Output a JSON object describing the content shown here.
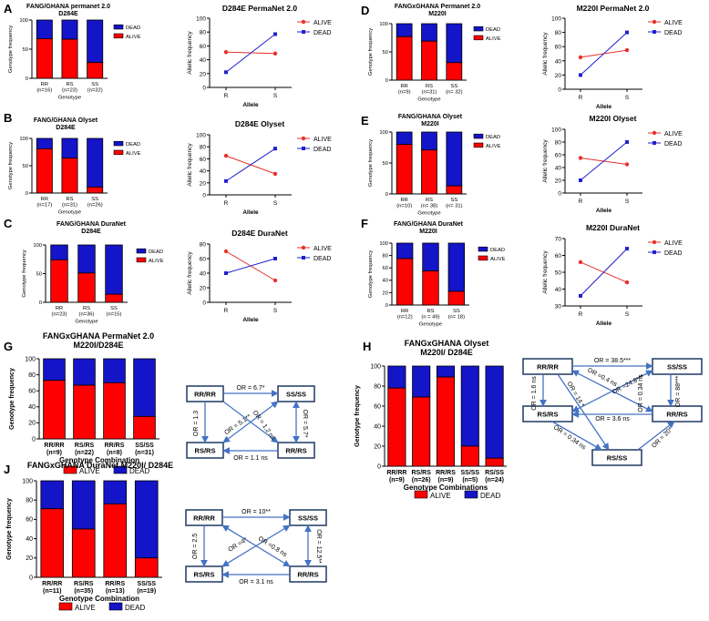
{
  "colors": {
    "alive": "#ff0000",
    "dead": "#1414c8",
    "alive_line": "#e8312c",
    "dead_line": "#2020d0",
    "arrow": "#4472c4",
    "box": "#1f3864"
  },
  "panel_letters": [
    "A",
    "B",
    "C",
    "D",
    "E",
    "F",
    "G",
    "H",
    "J"
  ],
  "chart_data": [
    {
      "id": "A",
      "type": "bar",
      "stacked": true,
      "title_lines": [
        "FANG/GHANA permanet 2.0",
        "D284E"
      ],
      "ylabel": "Genotype frequency",
      "xlabel": "Genotype",
      "ylim": [
        0,
        100
      ],
      "yticks": [
        "0",
        "50",
        "100"
      ],
      "categories": [
        "RR",
        "RS",
        "SS"
      ],
      "ns": [
        "(n=16)",
        "(n=23)",
        "(n=32)"
      ],
      "series": [
        {
          "name": "ALIVE",
          "values": [
            68,
            67,
            27
          ]
        },
        {
          "name": "DEAD",
          "values": [
            32,
            33,
            73
          ]
        }
      ],
      "legend": [
        "DEAD",
        "ALIVE"
      ]
    },
    {
      "id": "A2",
      "type": "line",
      "title": "D284E PermaNet 2.0",
      "ylabel": "Allelic frequency",
      "xlabel": "Allele",
      "x": [
        "R",
        "S"
      ],
      "ylim": [
        0,
        100
      ],
      "yticks": [
        "0",
        "20",
        "40",
        "60",
        "80",
        "100"
      ],
      "series": [
        {
          "name": "ALIVE",
          "values": [
            51,
            49
          ]
        },
        {
          "name": "DEAD",
          "values": [
            22,
            77
          ]
        }
      ]
    },
    {
      "id": "B",
      "type": "bar",
      "stacked": true,
      "title_lines": [
        "FANG/GHANA Olyset",
        "D284E"
      ],
      "ylabel": "Genotype frequency",
      "xlabel": "Genotype",
      "ylim": [
        0,
        100
      ],
      "yticks": [
        "0",
        "50",
        "100"
      ],
      "categories": [
        "RR",
        "RS",
        "SS"
      ],
      "ns": [
        "(n=17)",
        "(n=31)",
        "(n=26)"
      ],
      "series": [
        {
          "name": "ALIVE",
          "values": [
            81,
            64,
            11
          ]
        },
        {
          "name": "DEAD",
          "values": [
            19,
            36,
            89
          ]
        }
      ],
      "legend": [
        "DEAD",
        "ALIVE"
      ]
    },
    {
      "id": "B2",
      "type": "line",
      "title": "D284E Olyset",
      "ylabel": "Allelic frequency",
      "xlabel": "Allele",
      "x": [
        "R",
        "S"
      ],
      "ylim": [
        0,
        100
      ],
      "yticks": [
        "0",
        "20",
        "40",
        "60",
        "80",
        "100"
      ],
      "series": [
        {
          "name": "ALIVE",
          "values": [
            65,
            35
          ]
        },
        {
          "name": "DEAD",
          "values": [
            23,
            77
          ]
        }
      ]
    },
    {
      "id": "C",
      "type": "bar",
      "stacked": true,
      "title_lines": [
        "FANG/GHANA DuraNet",
        "D284E"
      ],
      "ylabel": "Genotype frequency",
      "xlabel": "Genotype",
      "ylim": [
        0,
        100
      ],
      "yticks": [
        "0",
        "50",
        "100"
      ],
      "categories": [
        "RR",
        "RS",
        "SS"
      ],
      "ns": [
        "(n=23)",
        "(n=36)",
        "(n=15)"
      ],
      "series": [
        {
          "name": "ALIVE",
          "values": [
            74,
            51,
            14
          ]
        },
        {
          "name": "DEAD",
          "values": [
            26,
            49,
            86
          ]
        }
      ],
      "legend": [
        "DEAD",
        "ALIVE"
      ]
    },
    {
      "id": "C2",
      "type": "line",
      "title": "D284E DuraNet",
      "ylabel": "Allelic frequency",
      "xlabel": "Allele",
      "x": [
        "R",
        "S"
      ],
      "ylim": [
        0,
        80
      ],
      "yticks": [
        "0",
        "20",
        "40",
        "60",
        "80"
      ],
      "series": [
        {
          "name": "ALIVE",
          "values": [
            70,
            30
          ]
        },
        {
          "name": "DEAD",
          "values": [
            40,
            60
          ]
        }
      ]
    },
    {
      "id": "D",
      "type": "bar",
      "stacked": true,
      "title_lines": [
        "FANGxGHANA Permanet 2.0",
        "M220I"
      ],
      "ylabel": "Genotype frequency",
      "xlabel": "Genotype",
      "ylim": [
        0,
        100
      ],
      "yticks": [
        "0",
        "50",
        "100"
      ],
      "categories": [
        "RR",
        "RS",
        "SS"
      ],
      "ns": [
        "(n=9)",
        "(n=31)",
        "(n= 32)"
      ],
      "series": [
        {
          "name": "ALIVE",
          "values": [
            77,
            69,
            31
          ]
        },
        {
          "name": "DEAD",
          "values": [
            23,
            31,
            69
          ]
        }
      ],
      "legend": [
        "DEAD",
        "ALIVE"
      ]
    },
    {
      "id": "D2",
      "type": "line",
      "title": "M220I PermaNet 2.0",
      "ylabel": "Allelic frequency",
      "xlabel": "Allele",
      "x": [
        "R",
        "S"
      ],
      "ylim": [
        0,
        100
      ],
      "yticks": [
        "0",
        "20",
        "40",
        "60",
        "80",
        "100"
      ],
      "series": [
        {
          "name": "ALIVE",
          "values": [
            45,
            55
          ]
        },
        {
          "name": "DEAD",
          "values": [
            20,
            80
          ]
        }
      ]
    },
    {
      "id": "E",
      "type": "bar",
      "stacked": true,
      "title_lines": [
        "FANG/GHANA Olyset",
        "M220I"
      ],
      "ylabel": "Genotype frequency",
      "xlabel": "Genotype",
      "ylim": [
        0,
        100
      ],
      "yticks": [
        "0",
        "50",
        "100"
      ],
      "categories": [
        "RR",
        "RS",
        "SS"
      ],
      "ns": [
        "(n=10)",
        "(n= 38)",
        "(n= 31)"
      ],
      "series": [
        {
          "name": "ALIVE",
          "values": [
            80,
            71,
            13
          ]
        },
        {
          "name": "DEAD",
          "values": [
            20,
            29,
            87
          ]
        }
      ],
      "legend": [
        "DEAD",
        "ALIVE"
      ]
    },
    {
      "id": "E2",
      "type": "line",
      "title": "M220I Olyset",
      "ylabel": "Allelic frequency",
      "xlabel": "Allele",
      "x": [
        "R",
        "S"
      ],
      "ylim": [
        0,
        100
      ],
      "yticks": [
        "0",
        "20",
        "40",
        "60",
        "80",
        "100"
      ],
      "series": [
        {
          "name": "ALIVE",
          "values": [
            55,
            45
          ]
        },
        {
          "name": "DEAD",
          "values": [
            20,
            80
          ]
        }
      ]
    },
    {
      "id": "F",
      "type": "bar",
      "stacked": true,
      "title_lines": [
        "FANG/GHANA DuraNet",
        "M220I"
      ],
      "ylabel": "Genotype frequency",
      "xlabel": "Genotype",
      "ylim": [
        0,
        100
      ],
      "yticks": [
        "0",
        "20",
        "40",
        "60",
        "80",
        "100"
      ],
      "categories": [
        "RR",
        "RS",
        "SS"
      ],
      "ns": [
        "(n=12)",
        "(n = 49)",
        "(n= 18)"
      ],
      "series": [
        {
          "name": "ALIVE",
          "values": [
            75,
            55,
            22
          ]
        },
        {
          "name": "DEAD",
          "values": [
            25,
            45,
            78
          ]
        }
      ],
      "legend": [
        "DEAD",
        "ALIVE"
      ]
    },
    {
      "id": "F2",
      "type": "line",
      "title": "M220I DuraNet",
      "ylabel": "Allelic frequency",
      "xlabel": "Allele",
      "x": [
        "R",
        "S"
      ],
      "ylim": [
        30,
        70
      ],
      "yticks": [
        "30",
        "40",
        "50",
        "60",
        "70"
      ],
      "series": [
        {
          "name": "ALIVE",
          "values": [
            56,
            44
          ]
        },
        {
          "name": "DEAD",
          "values": [
            36,
            64
          ]
        }
      ]
    },
    {
      "id": "G",
      "type": "bar",
      "stacked": true,
      "title_lines": [
        "FANGxGHANA PermaNet 2.0",
        "M220I/D284E"
      ],
      "ylabel": "Genotype frequency",
      "xlabel": "Genotype Combination",
      "ylim": [
        0,
        100
      ],
      "yticks": [
        "0",
        "20",
        "40",
        "60",
        "80",
        "100"
      ],
      "categories": [
        "RR/RR",
        "RS/RS",
        "RR/RS",
        "SS/SS"
      ],
      "ns": [
        "(n=9)",
        "(n=22)",
        "(n=8)",
        "(n=31)"
      ],
      "series": [
        {
          "name": "ALIVE",
          "values": [
            73,
            67,
            70,
            28
          ]
        },
        {
          "name": "DEAD",
          "values": [
            27,
            33,
            30,
            72
          ]
        }
      ],
      "legend": [
        "ALIVE",
        "DEAD"
      ]
    },
    {
      "id": "H",
      "type": "bar",
      "stacked": true,
      "title_lines": [
        "FANGxGHANA  Olyset",
        "M220I/ D284E"
      ],
      "ylabel": "Genotype frequency",
      "xlabel": "Genotype Combinations",
      "ylim": [
        0,
        100
      ],
      "yticks": [
        "0",
        "20",
        "40",
        "60",
        "80",
        "100"
      ],
      "categories": [
        "RR/RR",
        "RS/RS",
        "RR/RS",
        "SS/SS",
        "RS/SS"
      ],
      "ns": [
        "(n=9)",
        "(n=26)",
        "(n=9)",
        "(n=5)",
        "(n=24)"
      ],
      "series": [
        {
          "name": "ALIVE",
          "values": [
            78,
            69,
            89,
            20,
            8
          ]
        },
        {
          "name": "DEAD",
          "values": [
            22,
            31,
            11,
            80,
            92
          ]
        }
      ],
      "legend": [
        "ALIVE",
        "DEAD"
      ]
    },
    {
      "id": "J",
      "type": "bar",
      "stacked": true,
      "title_lines": [
        "FANGxGHANA  DuraNet M220I/ D284E"
      ],
      "ylabel": "Genotype frequency",
      "xlabel": "Genotype Combination",
      "ylim": [
        0,
        100
      ],
      "yticks": [
        "0",
        "20",
        "40",
        "60",
        "80",
        "100"
      ],
      "categories": [
        "RR/RR",
        "RS/RS",
        "RR/RS",
        "SS/SS"
      ],
      "ns": [
        "(n=11)",
        "(n=35)",
        "(n=13)",
        "(n=19)"
      ],
      "series": [
        {
          "name": "ALIVE",
          "values": [
            71,
            50,
            76,
            20
          ]
        },
        {
          "name": "DEAD",
          "values": [
            29,
            50,
            24,
            80
          ]
        }
      ],
      "legend": [
        "ALIVE",
        "DEAD"
      ]
    }
  ],
  "diagrams": {
    "G": {
      "nodes": [
        "RR/RR",
        "SS/SS",
        "RS/RS",
        "RR/RS"
      ],
      "labels": [
        "OR = 6.7*",
        "OR = 1.3",
        "OR = 5.1**",
        "OR = 1.2 ns",
        "OR = 5.7*",
        "OR = 1.1 ns"
      ]
    },
    "H": {
      "nodes": [
        "RR/RR",
        "SS/SS",
        "RS/RS",
        "RR/RS",
        "RS/SS"
      ],
      "labels": [
        "OR = 38.5***",
        "OR = 1.6 ns",
        "OR = 14 *",
        "OR =0.4 ns",
        "OR =24.8***",
        "OR = 0.34 ns",
        "OR = 88***",
        "OR = 3.6 ns",
        "OR = 0.34 ns",
        "OR = 20*"
      ]
    },
    "J": {
      "nodes": [
        "RR/RR",
        "SS/SS",
        "RS/RS",
        "RR/RS"
      ],
      "labels": [
        "OR = 10**",
        "OR = 2.5",
        "OR =4*",
        "OR =0.8 ns",
        "OR = 12.5**",
        "OR = 3.1 ns"
      ]
    }
  }
}
